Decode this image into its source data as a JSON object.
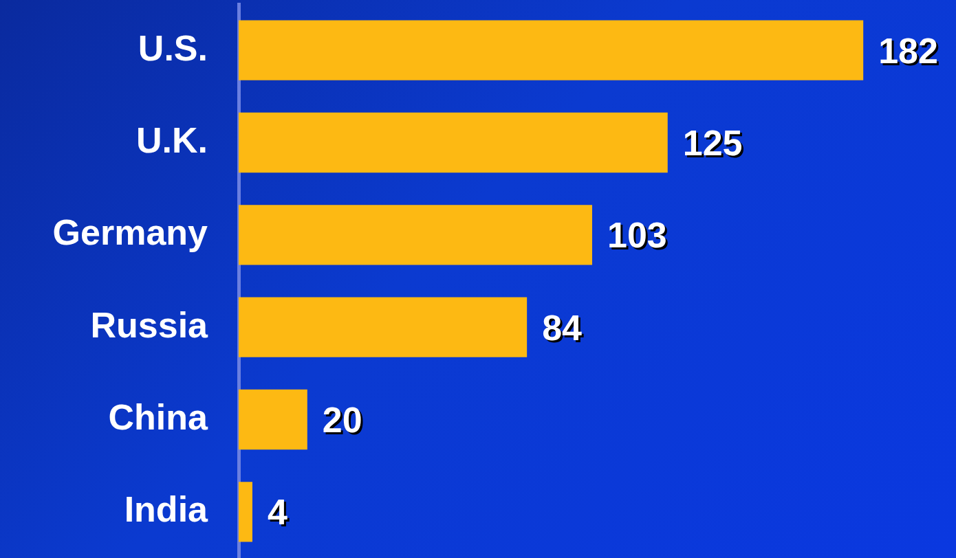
{
  "chart_data": {
    "type": "bar",
    "orientation": "horizontal",
    "categories": [
      "U.S.",
      "U.K.",
      "Germany",
      "Russia",
      "China",
      "India"
    ],
    "values": [
      182,
      125,
      103,
      84,
      20,
      4
    ],
    "color": "#fdb913",
    "data_labels": true
  }
}
